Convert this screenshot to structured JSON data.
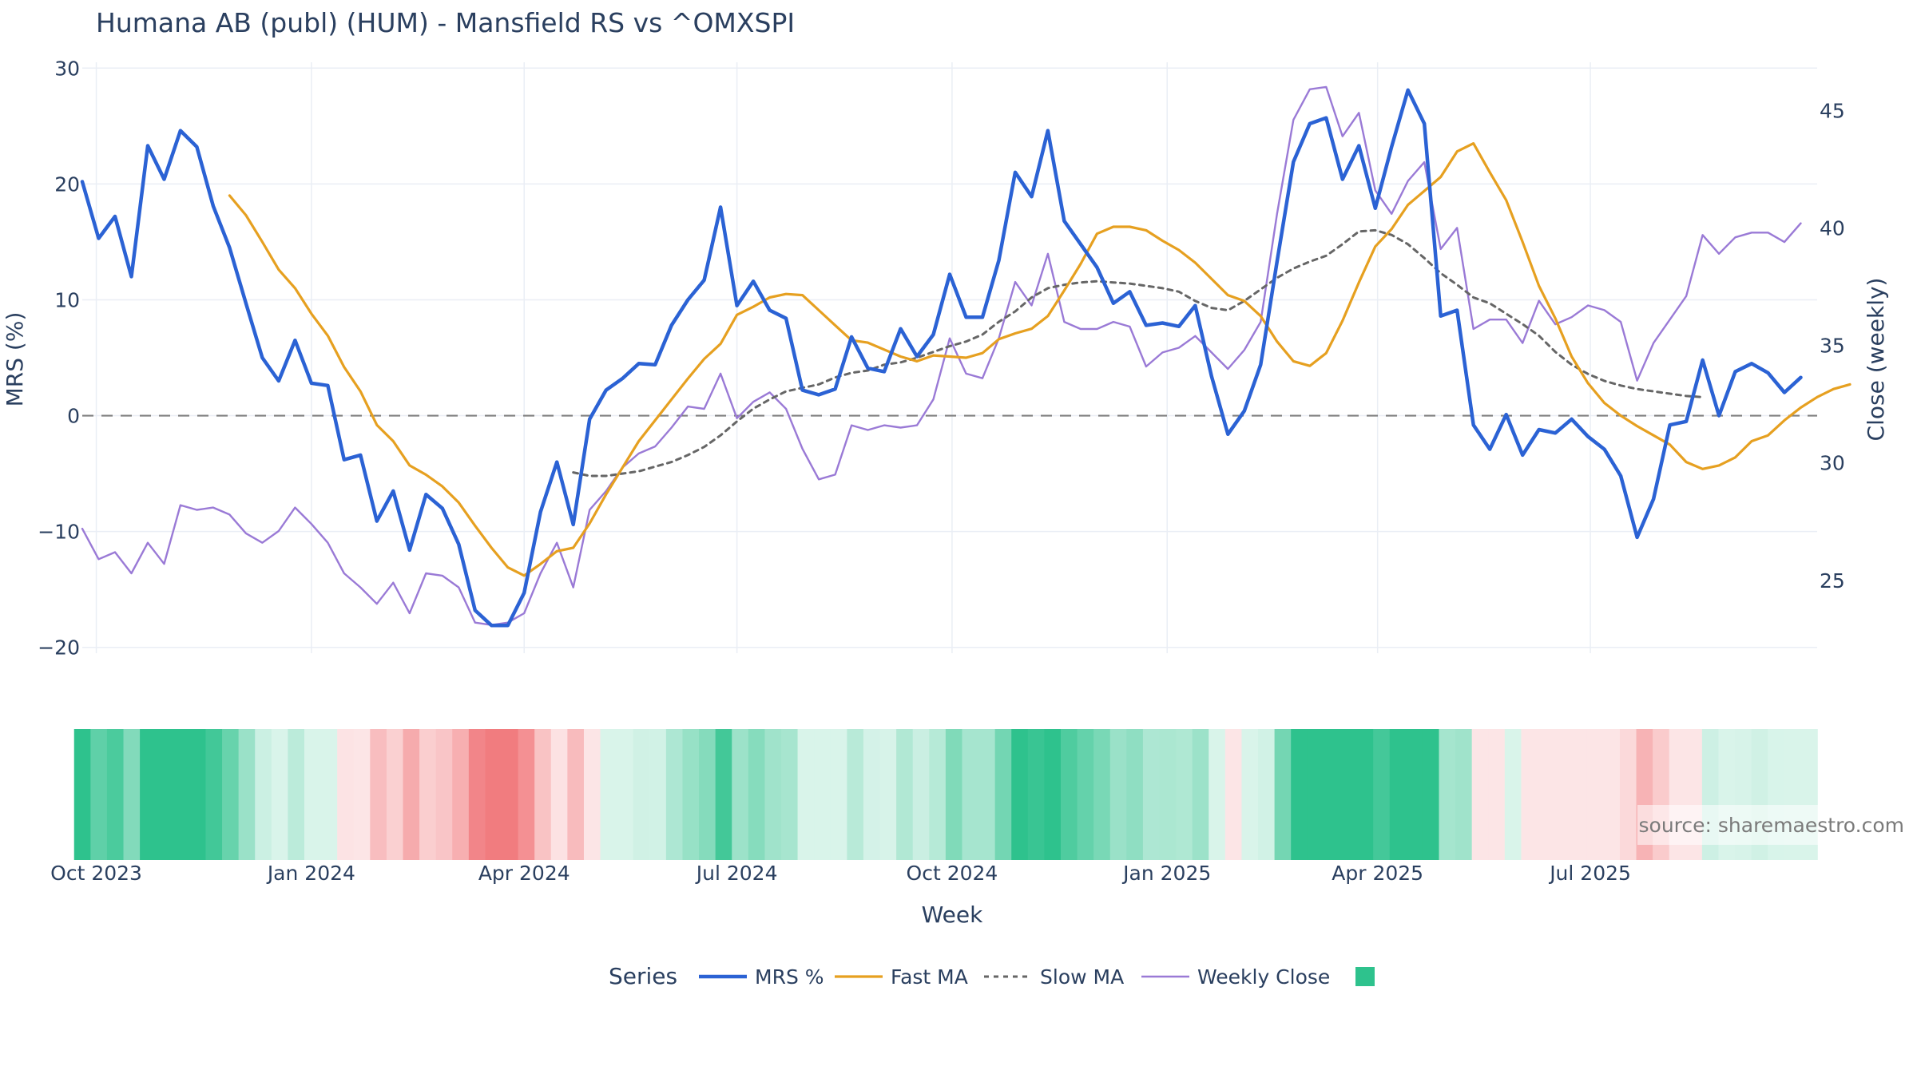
{
  "colors": {
    "mrs": "#2b62d4",
    "fast": "#e6a020",
    "slow": "#666666",
    "close": "#9a7ad6",
    "zero": "#7f7f7f",
    "grid": "#eaeef5",
    "heat_green": "#2ec28d",
    "heat_red": "#f06e72"
  },
  "chart_data": {
    "type": "line",
    "title": "Humana AB (publ) (HUM) - Mansfield RS vs ^OMXSPI",
    "source": "source: sharemaestro.com",
    "xlabel": "Week",
    "ylabel": "MRS (%)",
    "y2label": "Close (weekly)",
    "ylim": [
      -20.5,
      30.5
    ],
    "y2lim": [
      21.9,
      47.05
    ],
    "yticks": [
      -20,
      -10,
      0,
      10,
      20,
      30
    ],
    "y2ticks": [
      25,
      30,
      35,
      40,
      45
    ],
    "xlim": [
      "2023-09-25",
      "2025-10-06"
    ],
    "xticks": [
      {
        "date": "2023-10-01",
        "label": "Oct 2023"
      },
      {
        "date": "2024-01-01",
        "label": "Jan 2024"
      },
      {
        "date": "2024-04-01",
        "label": "Apr 2024"
      },
      {
        "date": "2024-07-01",
        "label": "Jul 2024"
      },
      {
        "date": "2024-10-01",
        "label": "Oct 2024"
      },
      {
        "date": "2025-01-01",
        "label": "Jan 2025"
      },
      {
        "date": "2025-04-01",
        "label": "Apr 2025"
      },
      {
        "date": "2025-07-01",
        "label": "Jul 2025"
      }
    ],
    "grid": true,
    "legend_title": "Series",
    "legend_position": "bottom",
    "x_start": "2023-09-25",
    "x_step_days": 7,
    "series": [
      {
        "name": "MRS %",
        "axis": "y",
        "style": "solid",
        "values": [
          20.2,
          15.3,
          17.2,
          12.0,
          23.3,
          20.4,
          24.6,
          23.2,
          18.1,
          14.5,
          9.7,
          5.0,
          3.0,
          6.5,
          2.8,
          2.6,
          -3.8,
          -3.4,
          -9.1,
          -6.5,
          -11.6,
          -6.8,
          -8.0,
          -11.1,
          -16.8,
          -18.1,
          -18.1,
          -15.3,
          -8.3,
          -4.0,
          -9.4,
          -0.3,
          2.2,
          3.2,
          4.5,
          4.4,
          7.8,
          10.0,
          11.7,
          18.0,
          9.5,
          11.6,
          9.1,
          8.4,
          2.2,
          1.8,
          2.3,
          6.8,
          4.1,
          3.8,
          7.5,
          5.1,
          7.0,
          12.2,
          8.5,
          8.5,
          13.4,
          21.0,
          18.9,
          24.6,
          16.8,
          14.8,
          12.8,
          9.7,
          10.7,
          7.8,
          8.0,
          7.7,
          9.5,
          3.4,
          -1.6,
          0.4,
          4.4,
          13.3,
          21.9,
          25.2,
          25.7,
          20.4,
          23.3,
          17.9,
          23.2,
          28.1,
          25.2,
          8.6,
          9.1,
          -0.8,
          -2.9,
          0.1,
          -3.4,
          -1.2,
          -1.5,
          -0.3,
          -1.8,
          -2.9,
          -5.2,
          -10.5,
          -7.2,
          -0.8,
          -0.5,
          4.8,
          0.0,
          3.8,
          4.5,
          3.7,
          2.0,
          3.3
        ]
      },
      {
        "name": "Fast MA",
        "axis": "y",
        "style": "solid",
        "offset": 9,
        "values": [
          19.0,
          17.3,
          15.0,
          12.6,
          11.0,
          8.8,
          6.9,
          4.2,
          2.1,
          -0.8,
          -2.2,
          -4.3,
          -5.1,
          -6.1,
          -7.5,
          -9.5,
          -11.4,
          -13.1,
          -13.8,
          -12.8,
          -11.7,
          -11.4,
          -9.3,
          -6.8,
          -4.5,
          -2.2,
          -0.4,
          1.4,
          3.2,
          4.9,
          6.2,
          8.7,
          9.4,
          10.2,
          10.5,
          10.4,
          9.1,
          7.8,
          6.5,
          6.3,
          5.7,
          5.1,
          4.7,
          5.2,
          5.1,
          5.0,
          5.4,
          6.6,
          7.1,
          7.5,
          8.6,
          10.8,
          13.1,
          15.7,
          16.3,
          16.3,
          16.0,
          15.1,
          14.3,
          13.2,
          11.8,
          10.4,
          9.9,
          8.6,
          6.4,
          4.7,
          4.3,
          5.4,
          8.2,
          11.5,
          14.6,
          16.1,
          18.2,
          19.4,
          20.6,
          22.8,
          23.5,
          21.0,
          18.6,
          15.0,
          11.2,
          8.4,
          5.1,
          2.8,
          1.1,
          0.0,
          -0.9,
          -1.7,
          -2.5,
          -4.0,
          -4.6,
          -4.3,
          -3.6,
          -2.2,
          -1.7,
          -0.4,
          0.7,
          1.6,
          2.3,
          2.7
        ]
      },
      {
        "name": "Slow MA",
        "axis": "y",
        "style": "dash",
        "offset": 30,
        "values": [
          -4.9,
          -5.2,
          -5.2,
          -5.0,
          -4.8,
          -4.4,
          -4.0,
          -3.4,
          -2.7,
          -1.7,
          -0.5,
          0.6,
          1.4,
          2.1,
          2.4,
          2.7,
          3.3,
          3.7,
          3.9,
          4.4,
          4.6,
          5.0,
          5.5,
          6.0,
          6.4,
          7.0,
          8.1,
          9.0,
          10.2,
          11.0,
          11.3,
          11.5,
          11.6,
          11.5,
          11.4,
          11.2,
          11.0,
          10.7,
          9.9,
          9.3,
          9.1,
          9.9,
          10.9,
          11.9,
          12.7,
          13.3,
          13.8,
          14.8,
          15.9,
          16.0,
          15.6,
          14.8,
          13.6,
          12.3,
          11.3,
          10.2,
          9.7,
          8.8,
          7.9,
          6.9,
          5.5,
          4.4,
          3.6,
          3.0,
          2.6,
          2.3,
          2.1,
          1.9,
          1.7,
          1.6
        ]
      },
      {
        "name": "Weekly Close",
        "axis": "y2",
        "style": "solid",
        "values": [
          27.2,
          25.9,
          26.2,
          25.3,
          26.6,
          25.7,
          28.2,
          28.0,
          28.1,
          27.8,
          27.0,
          26.6,
          27.1,
          28.1,
          27.4,
          26.6,
          25.3,
          24.7,
          24.0,
          24.9,
          23.6,
          25.3,
          25.2,
          24.7,
          23.2,
          23.1,
          23.2,
          23.6,
          25.3,
          26.6,
          24.7,
          28.0,
          28.8,
          29.8,
          30.4,
          30.7,
          31.5,
          32.4,
          32.3,
          33.8,
          31.9,
          32.6,
          33.0,
          32.3,
          30.6,
          29.3,
          29.5,
          31.6,
          31.4,
          31.6,
          31.5,
          31.6,
          32.7,
          35.3,
          33.8,
          33.6,
          35.3,
          37.7,
          36.7,
          38.9,
          36.0,
          35.7,
          35.7,
          36.0,
          35.8,
          34.1,
          34.7,
          34.9,
          35.4,
          34.7,
          34.0,
          34.8,
          36.0,
          40.6,
          44.6,
          45.9,
          46.0,
          43.9,
          44.9,
          41.6,
          40.6,
          42.0,
          42.8,
          39.1,
          40.0,
          35.7,
          36.1,
          36.1,
          35.1,
          36.9,
          35.9,
          36.2,
          36.7,
          36.5,
          36.0,
          33.5,
          35.1,
          36.1,
          37.1,
          39.7,
          38.9,
          39.6,
          39.8,
          39.8,
          39.4,
          40.2
        ]
      }
    ],
    "heatmap_strip": {
      "note": "Weekly MRS colour strip: green for positive, red for negative values",
      "values_from_series": "MRS %"
    }
  }
}
